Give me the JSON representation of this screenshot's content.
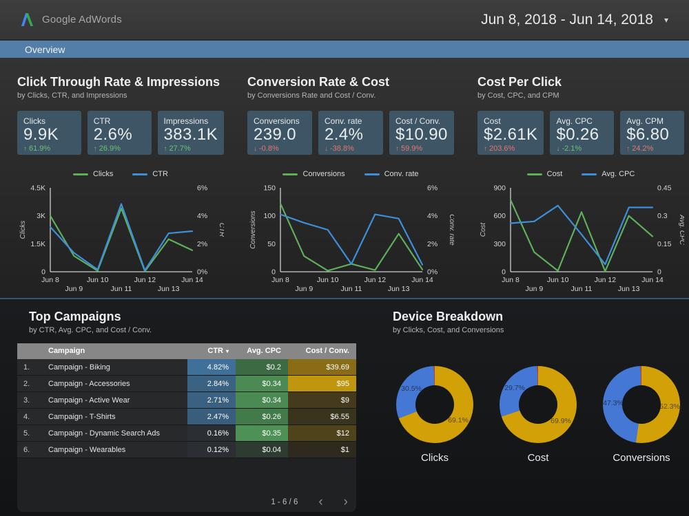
{
  "header": {
    "logo_text": "Google AdWords",
    "date_range": "Jun 8, 2018 - Jun 14, 2018"
  },
  "nav": {
    "tab": "Overview"
  },
  "colors": {
    "line_green": "#5fae5a",
    "line_blue": "#3e8fd9",
    "donut_gold": "#d2a007",
    "donut_blue": "#4577d4",
    "donut_other": "#bf3a2b",
    "delta_green": "#6dc172",
    "delta_red": "#e5776f",
    "nav_bar": "#527ea7",
    "card_bg": "#3d5565"
  },
  "sections": [
    {
      "title": "Click Through Rate & Impressions",
      "subtitle": "by Clicks, CTR, and Impressions",
      "scorecards": [
        {
          "label": "Clicks",
          "value": "9.9K",
          "delta": "61.9%",
          "arrow": "up",
          "tone": "green"
        },
        {
          "label": "CTR",
          "value": "2.6%",
          "delta": "26.9%",
          "arrow": "up",
          "tone": "green"
        },
        {
          "label": "Impressions",
          "value": "383.1K",
          "delta": "27.7%",
          "arrow": "up",
          "tone": "green"
        }
      ]
    },
    {
      "title": "Conversion Rate & Cost",
      "subtitle": "by Conversions Rate and Cost / Conv.",
      "scorecards": [
        {
          "label": "Conversions",
          "value": "239.0",
          "delta": "-0.8%",
          "arrow": "down",
          "tone": "red"
        },
        {
          "label": "Conv. rate",
          "value": "2.4%",
          "delta": "-38.8%",
          "arrow": "down",
          "tone": "red"
        },
        {
          "label": "Cost / Conv.",
          "value": "$10.90",
          "delta": "59.9%",
          "arrow": "up",
          "tone": "red"
        }
      ]
    },
    {
      "title": "Cost Per Click",
      "subtitle": "by Cost, CPC, and CPM",
      "scorecards": [
        {
          "label": "Cost",
          "value": "$2.61K",
          "delta": "203.6%",
          "arrow": "up",
          "tone": "red"
        },
        {
          "label": "Avg. CPC",
          "value": "$0.26",
          "delta": "-2.1%",
          "arrow": "down",
          "tone": "green"
        },
        {
          "label": "Avg. CPM",
          "value": "$6.80",
          "delta": "24.2%",
          "arrow": "up",
          "tone": "red"
        }
      ]
    }
  ],
  "chart_data": [
    {
      "type": "line",
      "x": [
        "Jun 8",
        "Jun 9",
        "Jun 10",
        "Jun 11",
        "Jun 12",
        "Jun 13",
        "Jun 14"
      ],
      "series": [
        {
          "name": "Clicks",
          "axis": "left",
          "color": "line_green",
          "values": [
            3000,
            850,
            50,
            3400,
            30,
            1750,
            1150
          ]
        },
        {
          "name": "CTR",
          "axis": "right",
          "color": "line_blue",
          "values": [
            3.2,
            1.35,
            0.15,
            4.85,
            0.1,
            2.75,
            2.9
          ]
        }
      ],
      "left_axis": {
        "label": "Clicks",
        "min": 0,
        "max": 4500,
        "ticks": [
          "0",
          "1.5K",
          "3K",
          "4.5K"
        ]
      },
      "right_axis": {
        "label": "CTR",
        "min": 0,
        "max": 6,
        "ticks": [
          "0%",
          "2%",
          "4%",
          "6%"
        ]
      },
      "grid": false,
      "legend_position": "top"
    },
    {
      "type": "line",
      "x": [
        "Jun 8",
        "Jun 9",
        "Jun 10",
        "Jun 11",
        "Jun 12",
        "Jun 13",
        "Jun 14"
      ],
      "series": [
        {
          "name": "Conversions",
          "axis": "left",
          "color": "line_green",
          "values": [
            122,
            28,
            2,
            14,
            3,
            68,
            4
          ]
        },
        {
          "name": "Conv. rate",
          "axis": "right",
          "color": "line_blue",
          "values": [
            4.1,
            3.5,
            3.0,
            0.55,
            4.1,
            3.8,
            0.5
          ]
        }
      ],
      "left_axis": {
        "label": "Conversions",
        "min": 0,
        "max": 150,
        "ticks": [
          "0",
          "50",
          "100",
          "150"
        ]
      },
      "right_axis": {
        "label": "Conv. rate",
        "min": 0,
        "max": 6,
        "ticks": [
          "0%",
          "2%",
          "4%",
          "6%"
        ]
      },
      "grid": false,
      "legend_position": "top"
    },
    {
      "type": "line",
      "x": [
        "Jun 8",
        "Jun 9",
        "Jun 10",
        "Jun 11",
        "Jun 12",
        "Jun 13",
        "Jun 14"
      ],
      "series": [
        {
          "name": "Cost",
          "axis": "left",
          "color": "line_green",
          "values": [
            770,
            210,
            10,
            640,
            5,
            600,
            380
          ]
        },
        {
          "name": "Avg. CPC",
          "axis": "right",
          "color": "line_blue",
          "values": [
            0.26,
            0.27,
            0.355,
            0.2,
            0.04,
            0.345,
            0.345
          ]
        }
      ],
      "left_axis": {
        "label": "Cost",
        "min": 0,
        "max": 900,
        "ticks": [
          "0",
          "300",
          "600",
          "900"
        ]
      },
      "right_axis": {
        "label": "Avg. CPC",
        "min": 0,
        "max": 0.45,
        "ticks": [
          "0",
          "0.15",
          "0.3",
          "0.45"
        ]
      },
      "grid": false,
      "legend_position": "top"
    },
    {
      "type": "pie",
      "title": "Clicks",
      "donut": true,
      "slices": [
        {
          "name": "gold",
          "value": 69.1,
          "label": "69.1%"
        },
        {
          "name": "blue",
          "value": 30.5,
          "label": "30.5%"
        },
        {
          "name": "other",
          "value": 0.4,
          "label": ""
        }
      ]
    },
    {
      "type": "pie",
      "title": "Cost",
      "donut": true,
      "slices": [
        {
          "name": "gold",
          "value": 69.9,
          "label": "69.9%"
        },
        {
          "name": "blue",
          "value": 29.7,
          "label": "29.7%"
        },
        {
          "name": "other",
          "value": 0.4,
          "label": ""
        }
      ]
    },
    {
      "type": "pie",
      "title": "Conversions",
      "donut": true,
      "slices": [
        {
          "name": "gold",
          "value": 52.3,
          "label": "52.3%"
        },
        {
          "name": "blue",
          "value": 47.3,
          "label": "47.3%"
        },
        {
          "name": "other",
          "value": 0.4,
          "label": ""
        }
      ]
    }
  ],
  "table_section": {
    "title": "Top Campaigns",
    "subtitle": "by CTR, Avg. CPC, and Cost / Conv."
  },
  "devices_section": {
    "title": "Device Breakdown",
    "subtitle": "by Clicks, Cost, and Conversions"
  },
  "table": {
    "type": "table",
    "columns": [
      "Campaign",
      "CTR",
      "Avg. CPC",
      "Cost / Conv."
    ],
    "sort_column": "CTR",
    "rows": [
      {
        "rank": "1.",
        "campaign": "Campaign - Biking",
        "ctr": "4.82%",
        "cpc": "$0.2",
        "cost_conv": "$39.69",
        "ctr_bg": "#3f7099",
        "cpc_bg": "#3c6b43",
        "cost_bg": "#8a6c16"
      },
      {
        "rank": "2.",
        "campaign": "Campaign - Accessories",
        "ctr": "2.84%",
        "cpc": "$0.34",
        "cost_conv": "$95",
        "ctr_bg": "#3a6283",
        "cpc_bg": "#4b8b53",
        "cost_bg": "#c0960f"
      },
      {
        "rank": "3.",
        "campaign": "Campaign - Active Wear",
        "ctr": "2.71%",
        "cpc": "$0.34",
        "cost_conv": "$9",
        "ctr_bg": "#3a6181",
        "cpc_bg": "#4b8b53",
        "cost_bg": "#453b1c"
      },
      {
        "rank": "4.",
        "campaign": "Campaign - T-Shirts",
        "ctr": "2.47%",
        "cpc": "$0.26",
        "cost_conv": "$6.55",
        "ctr_bg": "#395d7c",
        "cpc_bg": "#427a4a",
        "cost_bg": "#39341d"
      },
      {
        "rank": "5.",
        "campaign": "Campaign - Dynamic Search Ads",
        "ctr": "0.16%",
        "cpc": "$0.35",
        "cost_conv": "$12",
        "ctr_bg": "#2b2f33",
        "cpc_bg": "#4e9156",
        "cost_bg": "#4f431c"
      },
      {
        "rank": "6.",
        "campaign": "Campaign - Wearables",
        "ctr": "0.12%",
        "cpc": "$0.04",
        "cost_conv": "$1",
        "ctr_bg": "#2b2f33",
        "cpc_bg": "#2e3b31",
        "cost_bg": "#2e2b1e"
      }
    ],
    "pagination": "1 - 6 / 6"
  }
}
